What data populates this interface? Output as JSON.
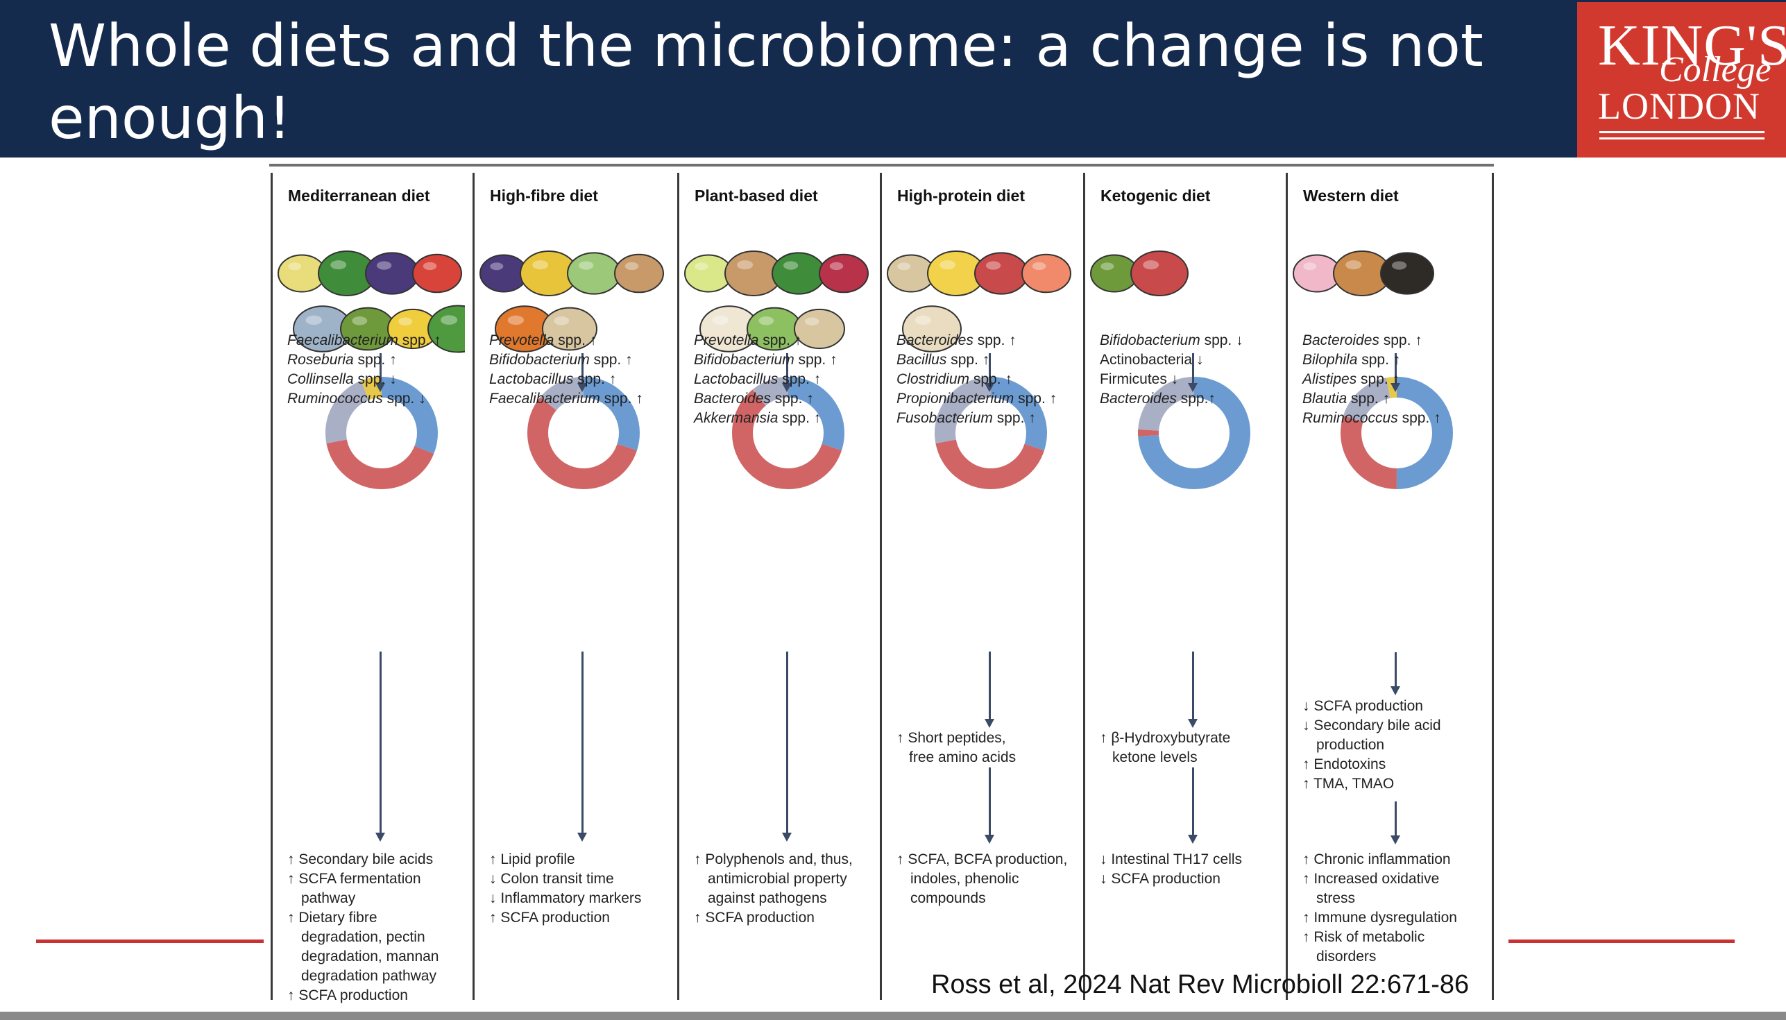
{
  "slide": {
    "title": "Whole diets and the microbiome: a change is not enough!",
    "citation": "Ross et al, 2024 Nat Rev Microbioll 22:671-86"
  },
  "logo": {
    "line1": "KING'S",
    "line2": "College",
    "line3": "LONDON"
  },
  "colors": {
    "header": "#152b4d",
    "logo_bg": "#d2392e",
    "accent_line": "#c93232",
    "donut_blue": "#6b9bd1",
    "donut_red": "#d16565",
    "donut_grey": "#a9afc4",
    "donut_yellow": "#e6c84a"
  },
  "diets": [
    {
      "name": "Mediterranean diet",
      "food_icons": [
        "olive-oil-icon",
        "broccoli-icon",
        "grapes-icon",
        "tomato-icon",
        "fish-icon",
        "avocado-icon",
        "banana-icon",
        "lettuce-icon"
      ],
      "donut": {
        "blue": 0.31,
        "red": 0.41,
        "grey": 0.22,
        "yellow": 0.06
      },
      "microbes": [
        {
          "name": "Faecalibacterium",
          "suffix": " spp. ↑"
        },
        {
          "name": "Roseburia",
          "suffix": " spp. ↑"
        },
        {
          "name": "Collinsella",
          "suffix": " spp. ↓"
        },
        {
          "name": "Ruminococcus",
          "suffix": " spp. ↓"
        }
      ],
      "metabolites": [],
      "outcomes": [
        "↑ Secondary bile acids",
        "↑ SCFA fermentation pathway",
        "↑ Dietary fibre degradation, pectin degradation, mannan degradation pathway",
        "↑ SCFA production"
      ]
    },
    {
      "name": "High-fibre diet",
      "food_icons": [
        "grapes-icon",
        "corn-icon",
        "cabbage-icon",
        "bread-icon",
        "carrot-icon",
        "nuts-icon"
      ],
      "donut": {
        "blue": 0.3,
        "red": 0.56,
        "grey": 0.14,
        "yellow": 0
      },
      "microbes": [
        {
          "name": "Prevotella",
          "suffix": " spp. ↑"
        },
        {
          "name": "Bifidobacterium",
          "suffix": " spp. ↑"
        },
        {
          "name": "Lactobacillus",
          "suffix": " spp. ↑"
        },
        {
          "name": "Faecalibacterium",
          "suffix": " spp. ↑"
        }
      ],
      "metabolites": [],
      "outcomes": [
        "↑ Lipid profile",
        "↓ Colon transit time",
        "↓ Inflammatory markers",
        "↑ SCFA production"
      ]
    },
    {
      "name": "Plant-based diet",
      "food_icons": [
        "juice-glass-icon",
        "bread-icon",
        "broccoli-icon",
        "beet-icon",
        "garlic-icon",
        "peas-icon",
        "nuts-icon"
      ],
      "donut": {
        "blue": 0.3,
        "red": 0.59,
        "grey": 0.11,
        "yellow": 0
      },
      "microbes": [
        {
          "name": "Prevotella",
          "suffix": " spp. ↑"
        },
        {
          "name": "Bifidobacterium",
          "suffix": " spp. ↑"
        },
        {
          "name": "Lactobacillus",
          "suffix": " spp. ↑"
        },
        {
          "name": "Bacteroides",
          "suffix": " spp. ↑"
        },
        {
          "name": "Akkermansia",
          "suffix": " spp. ↑"
        }
      ],
      "metabolites": [],
      "outcomes": [
        "↑ Polyphenols and, thus, antimicrobial property against pathogens",
        "↑ SCFA production"
      ]
    },
    {
      "name": "High-protein diet",
      "food_icons": [
        "nuts-icon",
        "cheese-icon",
        "steak-icon",
        "salmon-icon",
        "eggs-icon"
      ],
      "donut": {
        "blue": 0.3,
        "red": 0.42,
        "grey": 0.28,
        "yellow": 0
      },
      "microbes": [
        {
          "name": "Bacteroides",
          "suffix": " spp. ↑"
        },
        {
          "name": "Bacillus",
          "suffix": " spp. ↑"
        },
        {
          "name": "Clostridium",
          "suffix": " spp. ↑"
        },
        {
          "name": "Propionibacterium",
          "suffix": " spp. ↑"
        },
        {
          "name": "Fusobacterium",
          "suffix": " spp. ↑"
        }
      ],
      "metabolites": [
        "↑ Short peptides,",
        "free amino acids"
      ],
      "outcomes": [
        "↑ SCFA, BCFA production, indoles, phenolic compounds"
      ]
    },
    {
      "name": "Ketogenic diet",
      "food_icons": [
        "avocado-icon",
        "steak-icon"
      ],
      "donut": {
        "blue": 0.74,
        "red": 0.02,
        "grey": 0.24,
        "yellow": 0
      },
      "microbes": [
        {
          "name": "Bifidobacterium",
          "suffix": " spp. ↓"
        },
        {
          "name": "",
          "suffix": "Actinobacteria ↓"
        },
        {
          "name": "",
          "suffix": "Firmicutes ↓"
        },
        {
          "name": "Bacteroides",
          "suffix": " spp.↑"
        }
      ],
      "metabolites": [
        "↑ β-Hydroxybutyrate",
        "ketone levels"
      ],
      "outcomes": [
        "↓ Intestinal TH17 cells",
        "↓ SCFA production"
      ]
    },
    {
      "name": "Western diet",
      "food_icons": [
        "donut-icon",
        "burger-icon",
        "pizza-icon"
      ],
      "donut": {
        "blue": 0.5,
        "red": 0.3,
        "grey": 0.17,
        "yellow": 0.03
      },
      "microbes": [
        {
          "name": "Bacteroides",
          "suffix": " spp. ↑"
        },
        {
          "name": "Bilophila",
          "suffix": " spp. ↑"
        },
        {
          "name": "Alistipes",
          "suffix": " spp. ↑"
        },
        {
          "name": "Blautia",
          "suffix": " spp. ↑"
        },
        {
          "name": "Ruminococcus",
          "suffix": " spp. ↑"
        }
      ],
      "metabolites": [
        "↓ SCFA production",
        "↓ Secondary bile acid production",
        "↑ Endotoxins",
        "↑ TMA, TMAO"
      ],
      "outcomes": [
        "↑ Chronic inflammation",
        "↑ Increased oxidative stress",
        "↑ Immune dysregulation",
        "↑ Risk of metabolic disorders"
      ]
    }
  ]
}
